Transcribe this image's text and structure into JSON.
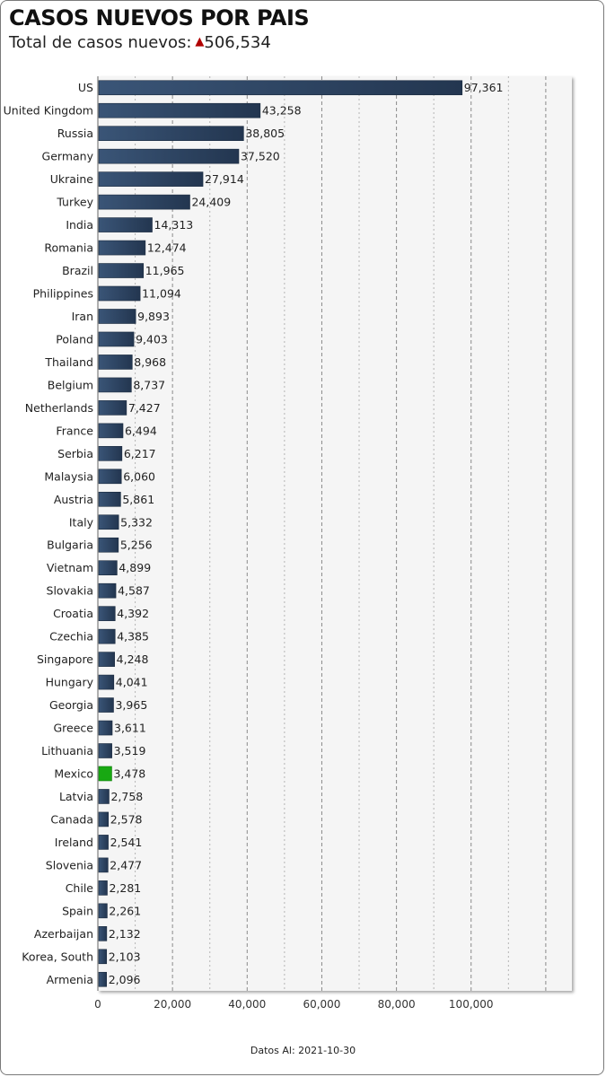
{
  "header": {
    "title": "CASOS NUEVOS POR PAIS",
    "subtitle_label": "Total de casos nuevos:",
    "subtitle_arrow": "▲",
    "subtitle_value": "506,534"
  },
  "footer": {
    "text": "Datos Al: 2021-10-30"
  },
  "colors": {
    "bar": "#2f4661",
    "highlight": "#18a812",
    "arrow": "#b00000",
    "plot_bg": "#f5f5f5"
  },
  "chart_data": {
    "type": "bar",
    "orientation": "horizontal",
    "title": "CASOS NUEVOS POR PAIS",
    "xlim": [
      0,
      127000
    ],
    "grid": true,
    "x_ticks": [
      0,
      20000,
      40000,
      60000,
      80000,
      100000
    ],
    "x_tick_labels": [
      "0",
      "20,000",
      "40,000",
      "60,000",
      "80,000",
      "100,000"
    ],
    "highlight": "Mexico",
    "categories": [
      "US",
      "United Kingdom",
      "Russia",
      "Germany",
      "Ukraine",
      "Turkey",
      "India",
      "Romania",
      "Brazil",
      "Philippines",
      "Iran",
      "Poland",
      "Thailand",
      "Belgium",
      "Netherlands",
      "France",
      "Serbia",
      "Malaysia",
      "Austria",
      "Italy",
      "Bulgaria",
      "Vietnam",
      "Slovakia",
      "Croatia",
      "Czechia",
      "Singapore",
      "Hungary",
      "Georgia",
      "Greece",
      "Lithuania",
      "Mexico",
      "Latvia",
      "Canada",
      "Ireland",
      "Slovenia",
      "Chile",
      "Spain",
      "Azerbaijan",
      "Korea, South",
      "Armenia"
    ],
    "values": [
      97361,
      43258,
      38805,
      37520,
      27914,
      24409,
      14313,
      12474,
      11965,
      11094,
      9893,
      9403,
      8968,
      8737,
      7427,
      6494,
      6217,
      6060,
      5861,
      5332,
      5256,
      4899,
      4587,
      4392,
      4385,
      4248,
      4041,
      3965,
      3611,
      3519,
      3478,
      2758,
      2578,
      2541,
      2477,
      2281,
      2261,
      2132,
      2103,
      2096
    ],
    "value_labels": [
      "97,361",
      "43,258",
      "38,805",
      "37,520",
      "27,914",
      "24,409",
      "14,313",
      "12,474",
      "11,965",
      "11,094",
      "9,893",
      "9,403",
      "8,968",
      "8,737",
      "7,427",
      "6,494",
      "6,217",
      "6,060",
      "5,861",
      "5,332",
      "5,256",
      "4,899",
      "4,587",
      "4,392",
      "4,385",
      "4,248",
      "4,041",
      "3,965",
      "3,611",
      "3,519",
      "3,478",
      "2,758",
      "2,578",
      "2,541",
      "2,477",
      "2,281",
      "2,261",
      "2,132",
      "2,103",
      "2,096"
    ]
  }
}
